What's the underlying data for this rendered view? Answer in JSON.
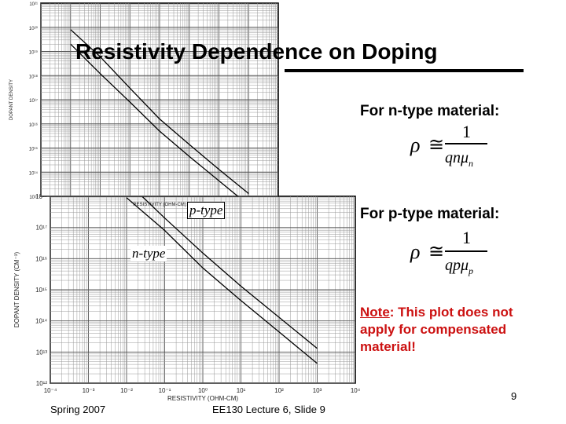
{
  "slide": {
    "title": "Resistivity Dependence on Doping",
    "footer_left": "Spring 2007",
    "footer_center": "EE130 Lecture 6, Slide 9",
    "page_number": "9"
  },
  "notes": {
    "ntype_heading": "For n-type material:",
    "ptype_heading": "For p-type material:",
    "ntype_formula": {
      "lhs": "ρ",
      "rel": "≅",
      "numerator": "1",
      "denominator": "qnμ",
      "subscript": "n"
    },
    "ptype_formula": {
      "lhs": "ρ",
      "rel": "≅",
      "numerator": "1",
      "denominator": "qpμ",
      "subscript": "p"
    },
    "caveat_label": "Note",
    "caveat_text": ": This plot does not apply for compensated material!"
  },
  "chart_data": [
    {
      "type": "line",
      "panel": "main",
      "xscale": "log",
      "yscale": "log",
      "xlim": [
        0.0001,
        10000
      ],
      "ylim": [
        1000000000000.0,
        1e+18
      ],
      "xlabel": "RESISTIVITY (OHM-CM)",
      "ylabel": "DOPANT DENSITY (CM⁻³)",
      "x_ticks": [
        "10⁻⁴",
        "10⁻³",
        "10⁻²",
        "10⁻¹",
        "10⁰",
        "10¹",
        "10²",
        "10³",
        "10⁴"
      ],
      "y_ticks": [
        "10¹²",
        "10¹³",
        "10¹⁴",
        "10¹⁵",
        "10¹⁶",
        "10¹⁷",
        "10¹⁸"
      ],
      "grid": true,
      "series": [
        {
          "name": "p-type",
          "x": [
            0.01,
            0.1,
            1,
            10,
            100,
            1000
          ],
          "y": [
            3e+18,
            2e+17,
            1.5e+16,
            1300000000000000.0,
            130000000000000.0,
            13000000000000.0
          ]
        },
        {
          "name": "n-type",
          "x": [
            0.01,
            0.1,
            1,
            10,
            100,
            1000
          ],
          "y": [
            9e+17,
            8e+16,
            5000000000000000.0,
            450000000000000.0,
            44000000000000.0,
            4300000000000.0
          ]
        }
      ]
    },
    {
      "type": "line",
      "panel": "inset",
      "xscale": "log",
      "yscale": "log",
      "xlim": [
        0.0001,
        10000
      ],
      "ylim": [
        10000000000000.0,
        1e+21
      ],
      "xlabel": "RESISTIVITY (OHM-CM)",
      "ylabel": "DOPANT DENSITY",
      "y_ticks": [
        "10¹³",
        "10¹⁴",
        "10¹⁵",
        "10¹⁶",
        "10¹⁷",
        "10¹⁸",
        "10¹⁹",
        "10²⁰",
        "10²¹"
      ],
      "grid": true,
      "series": [
        {
          "x": [
            0.001,
            0.01,
            0.1,
            1,
            10,
            100,
            1000
          ],
          "y": [
            8e+19,
            6e+18,
            3e+17,
            1.6e+16,
            1400000000000000.0,
            130000000000000.0,
            13000000000000.0
          ]
        },
        {
          "x": [
            0.001,
            0.01,
            0.1,
            1,
            10,
            100,
            1000
          ],
          "y": [
            2e+19,
            1.2e+18,
            8e+16,
            5000000000000000.0,
            450000000000000.0,
            44000000000000.0,
            4300000000000.0
          ]
        }
      ]
    }
  ]
}
